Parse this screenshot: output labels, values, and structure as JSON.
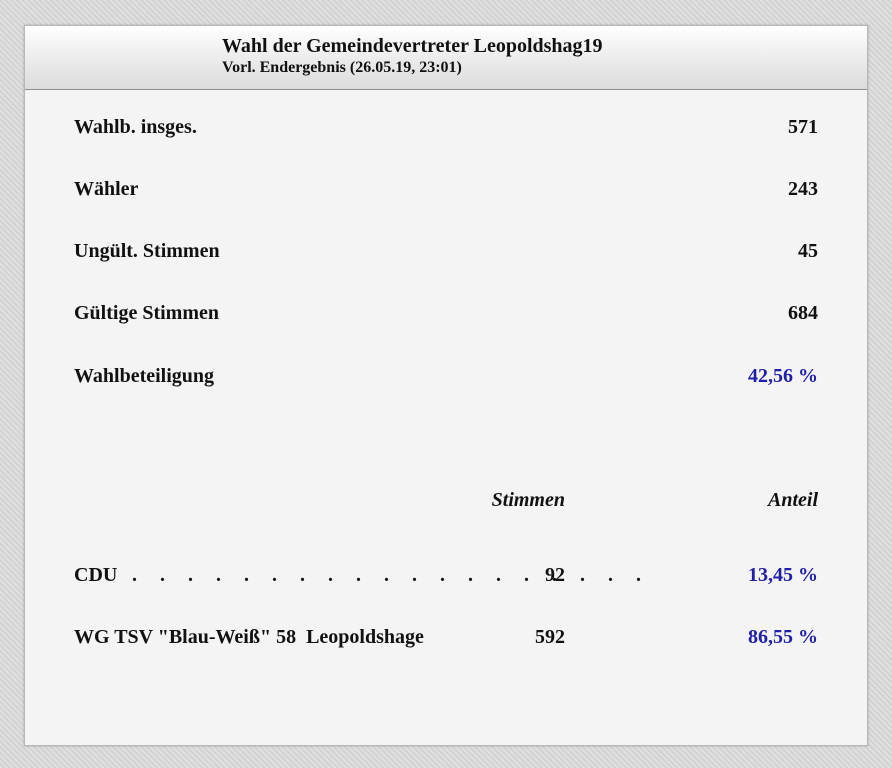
{
  "header": {
    "title": "Wahl der Gemeindevertreter Leopoldshag19",
    "subtitle": "Vorl. Endergebnis (26.05.19, 23:01)"
  },
  "stats": [
    {
      "label": "Wahlb. insges.",
      "value": "571"
    },
    {
      "label": "Wähler",
      "value": "243"
    },
    {
      "label": "Ungült. Stimmen",
      "value": "45"
    },
    {
      "label": "Gültige Stimmen",
      "value": "684"
    },
    {
      "label": "Wahlbeteiligung",
      "value": "42,56 %"
    }
  ],
  "columns": {
    "votes": "Stimmen",
    "share": "Anteil"
  },
  "parties": [
    {
      "name": "CDU",
      "dots": ". . . . . . . . . . . . . . . . . . .",
      "votes": "92",
      "share": "13,45 %"
    },
    {
      "name": "WG TSV \"Blau-Weiß\" 58  Leopoldshage",
      "dots": "",
      "votes": "592",
      "share": "86,55 %"
    }
  ],
  "colors": {
    "accent": "#1f1fa8",
    "text": "#111111",
    "panel": "#f4f4f4"
  }
}
